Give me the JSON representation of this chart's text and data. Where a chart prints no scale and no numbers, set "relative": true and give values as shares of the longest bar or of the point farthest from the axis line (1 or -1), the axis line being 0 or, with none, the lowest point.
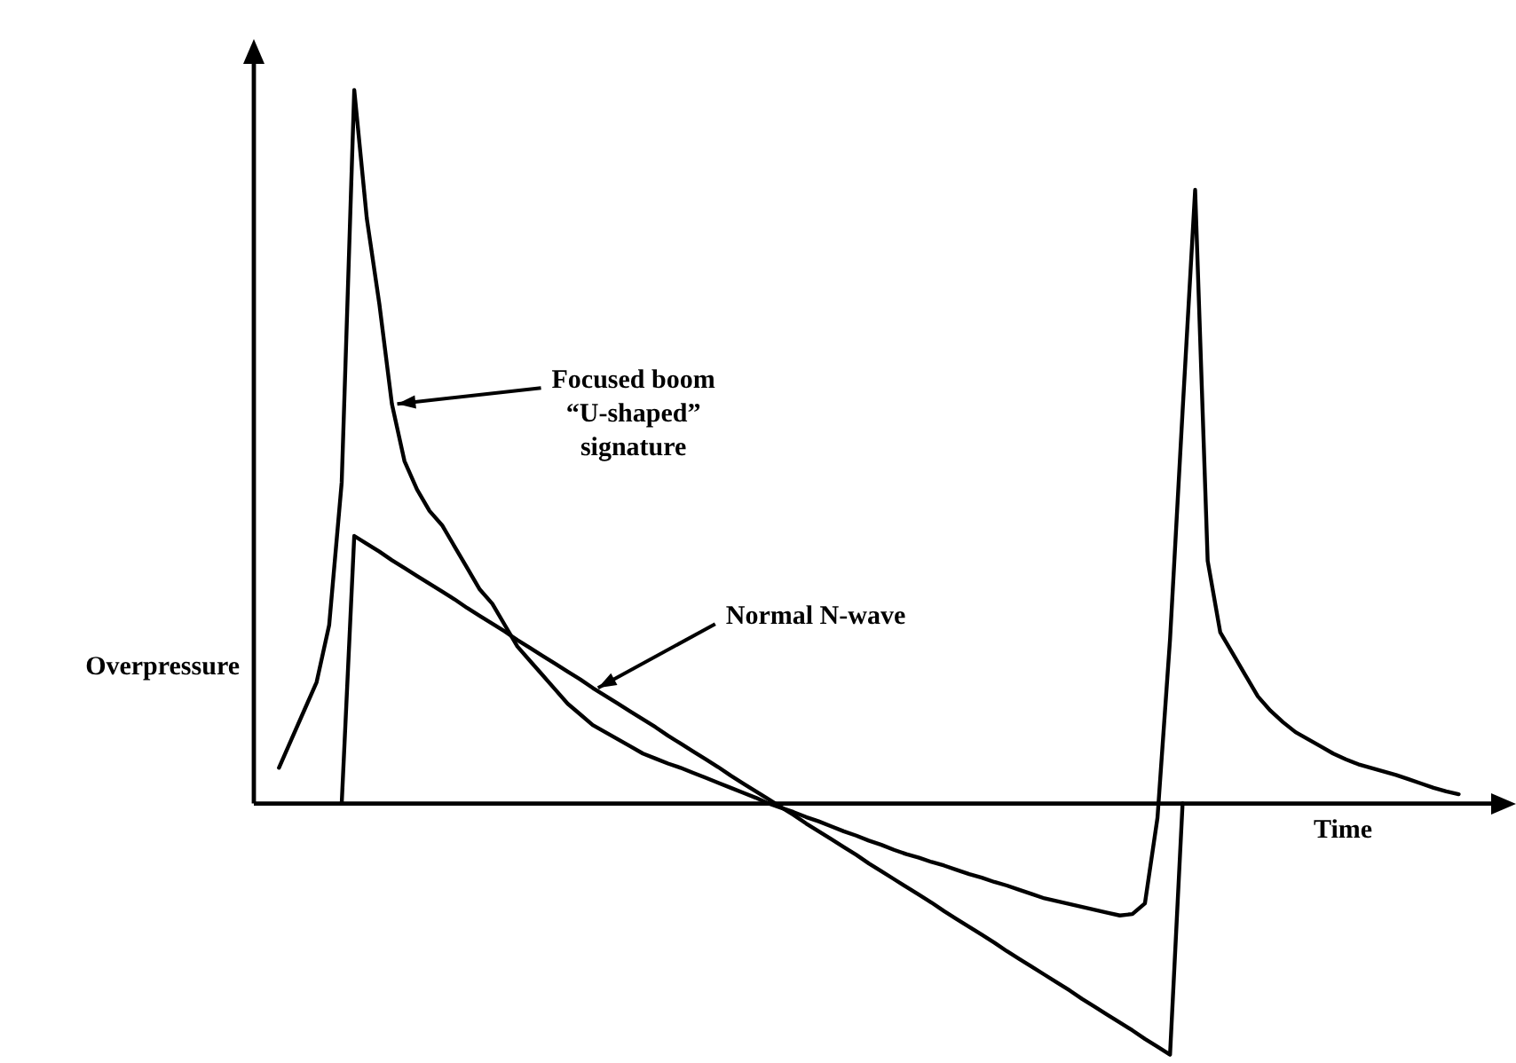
{
  "chart_data": {
    "type": "line",
    "relative": true,
    "xlabel": "Time",
    "ylabel": "Overpressure",
    "tick_labels": false,
    "grid": false,
    "legend": false,
    "marker": "none",
    "line_style": "solid",
    "categories": [
      null,
      null,
      null,
      null,
      null,
      null,
      null,
      null,
      null,
      null,
      null,
      null,
      null,
      null,
      null,
      null,
      null,
      null,
      null,
      null,
      null,
      null,
      null,
      null,
      null,
      null,
      null,
      null,
      null,
      null,
      null,
      null,
      null,
      null,
      null,
      null,
      null,
      null,
      null,
      null,
      null,
      null,
      null,
      null,
      null,
      null,
      null,
      null,
      null,
      null,
      null,
      null,
      null,
      null,
      null,
      null,
      null,
      null,
      null,
      null,
      null,
      null,
      null,
      null,
      null,
      null,
      null,
      null,
      null,
      null,
      null,
      null,
      null,
      null,
      null,
      null,
      null,
      null,
      null,
      null,
      null,
      null,
      null,
      null,
      null,
      null,
      null,
      null,
      null,
      null,
      null,
      null,
      null,
      null,
      null,
      null,
      null,
      null,
      null,
      null,
      null
    ],
    "series": [
      {
        "color": "#000000",
        "values": [
          null,
          null,
          0.05,
          0.09,
          0.13,
          0.17,
          0.25,
          0.45,
          1,
          0.82,
          0.7,
          0.56,
          0.48,
          0.44,
          0.41,
          0.39,
          0.36,
          0.33,
          0.3,
          0.28,
          0.25,
          0.22,
          0.2,
          0.18,
          0.16,
          0.14,
          0.125,
          0.11,
          0.1,
          0.09,
          0.08,
          0.07,
          0.063,
          0.056,
          0.05,
          0.043,
          0.036,
          0.029,
          0.022,
          0.015,
          0.008,
          0,
          -0.006,
          -0.012,
          -0.019,
          -0.025,
          -0.032,
          -0.039,
          -0.045,
          -0.052,
          -0.058,
          -0.065,
          -0.071,
          -0.076,
          -0.082,
          -0.087,
          -0.093,
          -0.099,
          -0.104,
          -0.11,
          -0.115,
          -0.121,
          -0.127,
          -0.133,
          -0.137,
          -0.141,
          -0.145,
          -0.149,
          -0.153,
          -0.157,
          -0.155,
          -0.14,
          -0.02,
          0.23,
          0.55,
          0.86,
          0.34,
          0.24,
          0.21,
          0.18,
          0.15,
          0.13,
          0.114,
          0.1,
          0.09,
          0.08,
          0.07,
          0.062,
          0.055,
          0.05,
          0.045,
          0.04,
          0.034,
          0.028,
          0.022,
          0.017,
          0.013,
          null,
          null,
          null,
          null
        ]
      },
      {
        "color": "#000000",
        "values": [
          null,
          null,
          null,
          null,
          null,
          null,
          null,
          0,
          0.375,
          0.364,
          0.353,
          0.341,
          0.33,
          0.319,
          0.308,
          0.297,
          0.286,
          0.274,
          0.263,
          0.252,
          0.241,
          0.229,
          0.218,
          0.207,
          0.196,
          0.185,
          0.174,
          0.162,
          0.151,
          0.14,
          0.129,
          0.118,
          0.107,
          0.095,
          0.084,
          0.073,
          0.062,
          0.051,
          0.039,
          0.028,
          0.017,
          0.006,
          -0.005,
          -0.016,
          -0.028,
          -0.039,
          -0.05,
          -0.061,
          -0.072,
          -0.084,
          -0.095,
          -0.106,
          -0.117,
          -0.128,
          -0.139,
          -0.151,
          -0.162,
          -0.173,
          -0.184,
          -0.195,
          -0.207,
          -0.218,
          -0.229,
          -0.24,
          -0.251,
          -0.262,
          -0.274,
          -0.285,
          -0.296,
          -0.307,
          -0.318,
          -0.33,
          -0.341,
          -0.352,
          0,
          null,
          null,
          null,
          null,
          null,
          null,
          null,
          null,
          null,
          null,
          null,
          null,
          null,
          null,
          null,
          null,
          null,
          null,
          null,
          null,
          null,
          null,
          null,
          null,
          null,
          null
        ]
      }
    ],
    "annotations": [
      "Focused boom\n“U-shaped”\nsignature",
      "Normal N-wave"
    ]
  }
}
